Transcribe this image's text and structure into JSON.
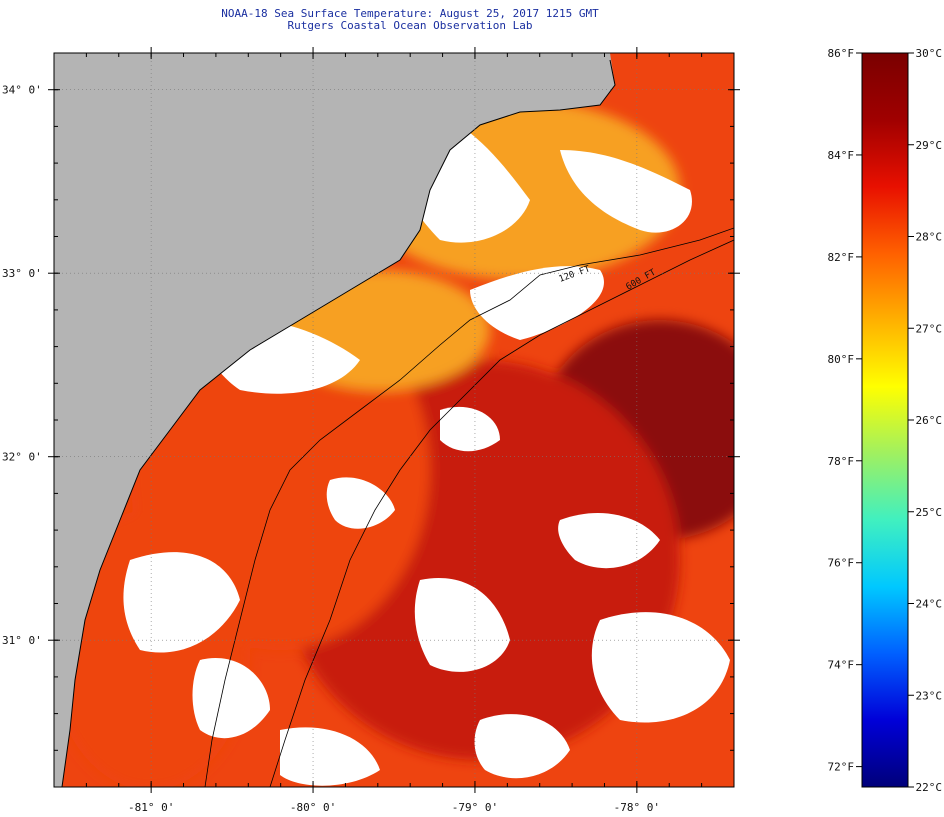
{
  "header": {
    "title": "NOAA-18 Sea Surface Temperature:  August 25, 2017 1215 GMT",
    "subtitle": "Rutgers Coastal Ocean Observation Lab"
  },
  "map": {
    "lon_range": [
      -81.6,
      -77.4
    ],
    "lat_range": [
      30.2,
      34.2
    ],
    "lat_ticks": [
      {
        "value": 34,
        "label": "34° 0'"
      },
      {
        "value": 33,
        "label": "33° 0'"
      },
      {
        "value": 32,
        "label": "32° 0'"
      },
      {
        "value": 31,
        "label": "31° 0'"
      }
    ],
    "lon_ticks": [
      {
        "value": -81,
        "label": "-81° 0'"
      },
      {
        "value": -80,
        "label": "-80° 0'"
      },
      {
        "value": -79,
        "label": "-79° 0'"
      },
      {
        "value": -78,
        "label": "-78° 0'"
      }
    ],
    "contours": [
      {
        "label": "120 FT"
      },
      {
        "label": "600 FT"
      }
    ],
    "colors": {
      "land": "#b4b4b4",
      "cloud": "#ffffff",
      "warm_core": "#8b0a0a",
      "warm": "#c81a0a",
      "mid": "#ee4410",
      "cool": "#f7a020"
    }
  },
  "colorbar": {
    "celsius": [
      {
        "value": 30,
        "label": "30°C"
      },
      {
        "value": 29,
        "label": "29°C"
      },
      {
        "value": 28,
        "label": "28°C"
      },
      {
        "value": 27,
        "label": "27°C"
      },
      {
        "value": 26,
        "label": "26°C"
      },
      {
        "value": 25,
        "label": "25°C"
      },
      {
        "value": 24,
        "label": "24°C"
      },
      {
        "value": 23,
        "label": "23°C"
      },
      {
        "value": 22,
        "label": "22°C"
      }
    ],
    "fahrenheit": [
      {
        "value": 86,
        "label": "86°F"
      },
      {
        "value": 84,
        "label": "84°F"
      },
      {
        "value": 82,
        "label": "82°F"
      },
      {
        "value": 80,
        "label": "80°F"
      },
      {
        "value": 78,
        "label": "78°F"
      },
      {
        "value": 76,
        "label": "76°F"
      },
      {
        "value": 74,
        "label": "74°F"
      },
      {
        "value": 72,
        "label": "72°F"
      }
    ],
    "range_c": [
      22,
      30
    ],
    "stops": [
      "#00007a",
      "#0000d8",
      "#0060ff",
      "#00c8ff",
      "#40f0c0",
      "#a0f060",
      "#ffff00",
      "#ffb000",
      "#ff6000",
      "#e81000",
      "#a00000",
      "#7a0000"
    ]
  }
}
